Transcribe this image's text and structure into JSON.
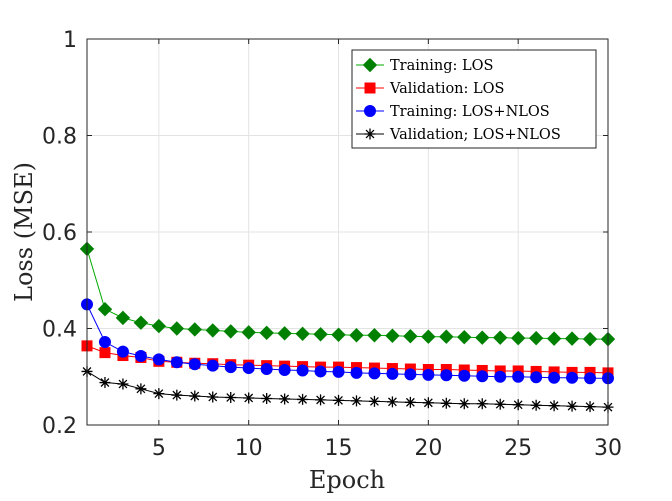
{
  "chart_data": {
    "type": "line",
    "title": "",
    "xlabel": "Epoch",
    "ylabel": "Loss (MSE)",
    "xlim": [
      1,
      30
    ],
    "ylim": [
      0.2,
      1
    ],
    "xticks": [
      5,
      10,
      15,
      20,
      25,
      30
    ],
    "xtick_labels": [
      "5",
      "10",
      "15",
      "20",
      "25",
      "30"
    ],
    "yticks": [
      0.2,
      0.4,
      0.6,
      0.8,
      1
    ],
    "ytick_labels": [
      "0.2",
      "0.4",
      "0.6",
      "0.8",
      "1"
    ],
    "grid": true,
    "legend_position": "top-right",
    "x": [
      1,
      2,
      3,
      4,
      5,
      6,
      7,
      8,
      9,
      10,
      11,
      12,
      13,
      14,
      15,
      16,
      17,
      18,
      19,
      20,
      21,
      22,
      23,
      24,
      25,
      26,
      27,
      28,
      29,
      30
    ],
    "series": [
      {
        "name": "Training: LOS",
        "color": "#00aa00",
        "marker_fill": "#008000",
        "marker": "diamond",
        "values": [
          0.565,
          0.44,
          0.422,
          0.412,
          0.405,
          0.4,
          0.398,
          0.396,
          0.394,
          0.392,
          0.391,
          0.39,
          0.389,
          0.388,
          0.387,
          0.386,
          0.386,
          0.385,
          0.384,
          0.383,
          0.383,
          0.382,
          0.381,
          0.381,
          0.38,
          0.38,
          0.379,
          0.379,
          0.378,
          0.378
        ]
      },
      {
        "name": "Validation: LOS",
        "color": "#ff0000",
        "marker_fill": "#ff0000",
        "marker": "square",
        "values": [
          0.364,
          0.35,
          0.344,
          0.34,
          0.332,
          0.33,
          0.328,
          0.327,
          0.325,
          0.324,
          0.323,
          0.322,
          0.321,
          0.32,
          0.32,
          0.319,
          0.318,
          0.317,
          0.316,
          0.315,
          0.315,
          0.314,
          0.313,
          0.312,
          0.312,
          0.311,
          0.31,
          0.309,
          0.309,
          0.308
        ]
      },
      {
        "name": "Training: LOS+NLOS",
        "color": "#0000ff",
        "marker_fill": "#0000ff",
        "marker": "circle",
        "values": [
          0.45,
          0.372,
          0.352,
          0.343,
          0.336,
          0.33,
          0.326,
          0.323,
          0.32,
          0.318,
          0.316,
          0.314,
          0.313,
          0.311,
          0.31,
          0.308,
          0.307,
          0.306,
          0.305,
          0.304,
          0.303,
          0.302,
          0.301,
          0.3,
          0.3,
          0.299,
          0.298,
          0.298,
          0.297,
          0.297
        ]
      },
      {
        "name": "Validation; LOS+NLOS",
        "color": "#000000",
        "marker_fill": "#000000",
        "marker": "asterisk",
        "values": [
          0.311,
          0.288,
          0.285,
          0.275,
          0.265,
          0.262,
          0.26,
          0.258,
          0.257,
          0.256,
          0.255,
          0.254,
          0.253,
          0.252,
          0.251,
          0.25,
          0.249,
          0.248,
          0.247,
          0.246,
          0.245,
          0.244,
          0.244,
          0.243,
          0.242,
          0.241,
          0.24,
          0.239,
          0.238,
          0.237
        ]
      }
    ]
  }
}
